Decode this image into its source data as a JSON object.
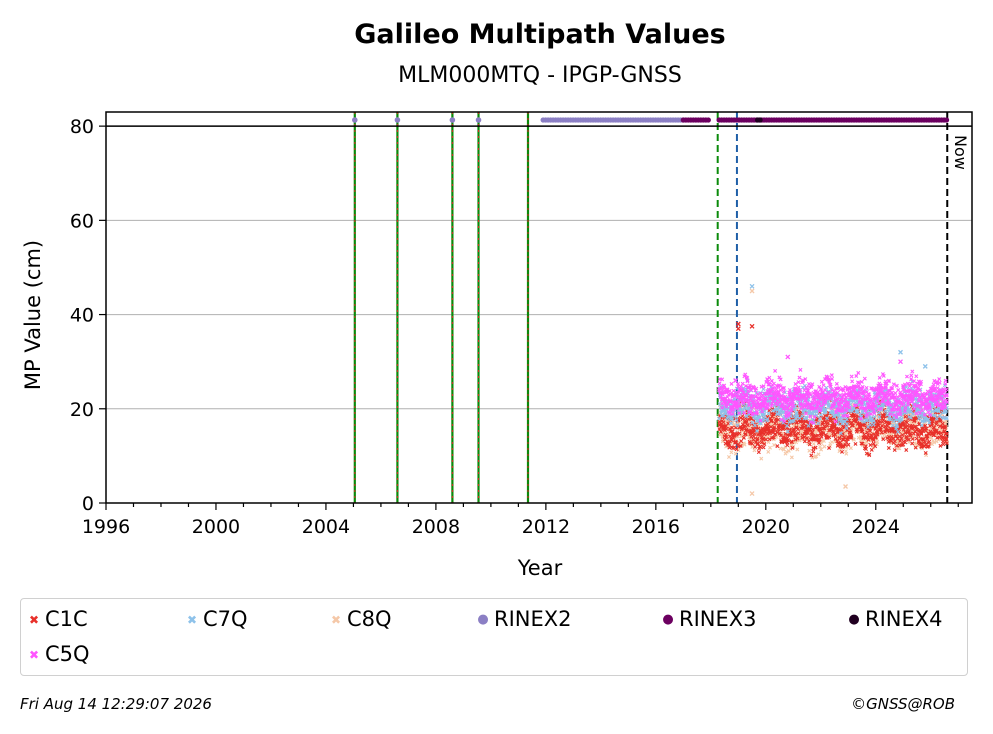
{
  "chart_data": {
    "type": "scatter",
    "title": "Galileo Multipath Values",
    "subtitle": "MLM000MTQ - IPGP-GNSS",
    "xlabel": "Year",
    "ylabel": "MP Value (cm)",
    "xlim": [
      1996,
      2027.5
    ],
    "ylim": [
      0,
      83
    ],
    "x_ticks": [
      1996,
      2000,
      2004,
      2008,
      2012,
      2016,
      2020,
      2024
    ],
    "y_ticks": [
      0,
      20,
      40,
      60,
      80
    ],
    "y_grid": true,
    "reference_line_y": 80,
    "now_label": "Now",
    "now_year": 2026.6,
    "vertical_lines": [
      {
        "x": 2005.05,
        "style": "green-red-dashed"
      },
      {
        "x": 2006.6,
        "style": "green-red-dashed"
      },
      {
        "x": 2008.6,
        "style": "green-red-dashed"
      },
      {
        "x": 2009.55,
        "style": "green-red-dashed"
      },
      {
        "x": 2011.35,
        "style": "green-red-dashed"
      },
      {
        "x": 2018.25,
        "style": "green-dashed"
      },
      {
        "x": 2018.95,
        "style": "blue-dashed"
      },
      {
        "x": 2026.6,
        "style": "black-dashed"
      }
    ],
    "rinex_availability": [
      {
        "format": "RINEX2",
        "x": 2005.05
      },
      {
        "format": "RINEX2",
        "x": 2006.6
      },
      {
        "format": "RINEX2",
        "x": 2008.6
      },
      {
        "format": "RINEX2",
        "x": 2009.55
      },
      {
        "format": "RINEX2",
        "range": [
          2011.9,
          2017.0
        ]
      },
      {
        "format": "RINEX3",
        "range": [
          2017.0,
          2018.0
        ]
      },
      {
        "format": "RINEX3",
        "range": [
          2018.3,
          2026.6
        ]
      },
      {
        "format": "RINEX4",
        "range": [
          2019.7,
          2019.85
        ]
      }
    ],
    "series": [
      {
        "name": "C1C",
        "color": "#e8302a",
        "marker": "x",
        "x_range": [
          2018.3,
          2026.6
        ],
        "typical": 16,
        "spread": 3,
        "outliers": [
          [
            2019.0,
            37
          ],
          [
            2019.0,
            38
          ],
          [
            2019.5,
            37.5
          ]
        ]
      },
      {
        "name": "C7Q",
        "color": "#8ec2ea",
        "marker": "x",
        "x_range": [
          2018.3,
          2026.6
        ],
        "typical": 20.5,
        "spread": 2.5,
        "outliers": [
          [
            2019.5,
            46
          ],
          [
            2024.9,
            32
          ],
          [
            2025.8,
            29
          ]
        ]
      },
      {
        "name": "C8Q",
        "color": "#f5c8a8",
        "marker": "x",
        "x_range": [
          2018.3,
          2026.6
        ],
        "typical": 15.5,
        "spread": 3,
        "outliers": [
          [
            2019.5,
            45
          ],
          [
            2022.9,
            3.5
          ],
          [
            2019.5,
            2
          ]
        ]
      },
      {
        "name": "RINEX2",
        "color": "#8b7fc4",
        "marker": "o"
      },
      {
        "name": "RINEX3",
        "color": "#6c0060",
        "marker": "o"
      },
      {
        "name": "RINEX4",
        "color": "#200020",
        "marker": "o"
      },
      {
        "name": "C5Q",
        "color": "#ff55ff",
        "marker": "x",
        "x_range": [
          2018.3,
          2026.6
        ],
        "typical": 22.5,
        "spread": 2.5,
        "outliers": [
          [
            2020.8,
            31
          ],
          [
            2024.9,
            30
          ],
          [
            2018.9,
            26
          ]
        ]
      }
    ]
  },
  "footer": {
    "timestamp": "Fri Aug 14 12:29:07 2026",
    "copyright": "©GNSS@ROB"
  }
}
